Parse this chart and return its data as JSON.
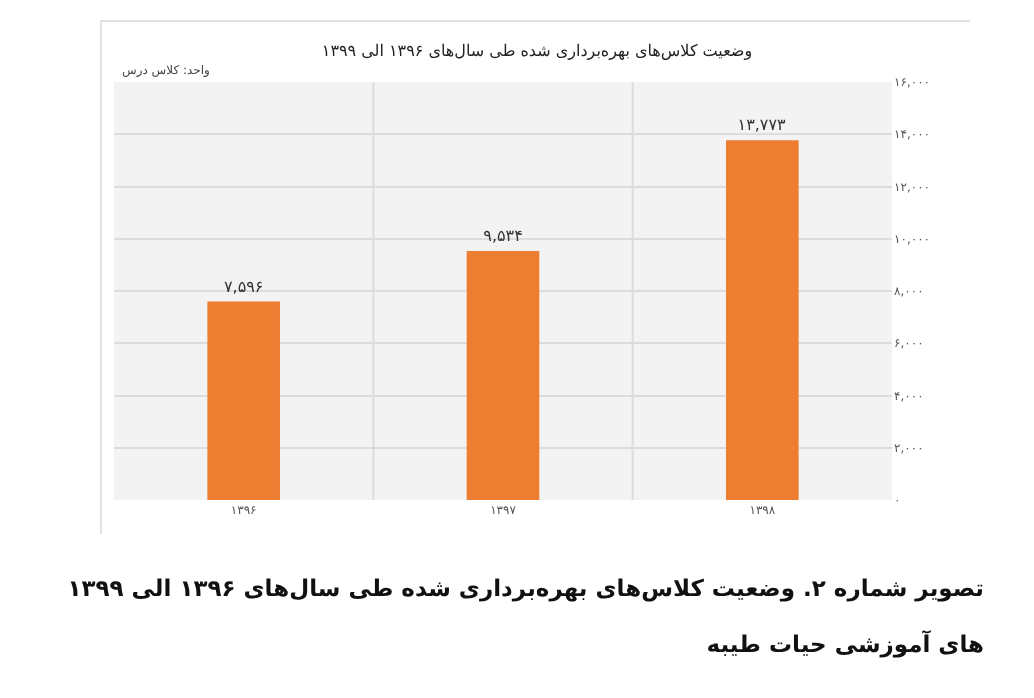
{
  "chart_data": {
    "type": "bar",
    "title": "وضعیت کلاس‌های بهره‌برداری شده طی سال‌های ۱۳۹۶ الی ۱۳۹۹",
    "ylabel": "واحد: کلاس درس",
    "categories": [
      "۱۳۹۶",
      "۱۳۹۷",
      "۱۳۹۸"
    ],
    "values": [
      7596,
      9534,
      13773
    ],
    "color": "#ed7d31",
    "value_labels": [
      "۷,۵۹۶",
      "۹,۵۳۴",
      "۱۳,۷۷۳"
    ],
    "ylim": [
      0,
      16000
    ],
    "yticks": [
      {
        "value": 0,
        "label": "۰"
      },
      {
        "value": 2000,
        "label": "۲,۰۰۰"
      },
      {
        "value": 4000,
        "label": "۴,۰۰۰"
      },
      {
        "value": 6000,
        "label": "۶,۰۰۰"
      },
      {
        "value": 8000,
        "label": "۸,۰۰۰"
      },
      {
        "value": 10000,
        "label": "۱۰,۰۰۰"
      },
      {
        "value": 12000,
        "label": "۱۲,۰۰۰"
      },
      {
        "value": 14000,
        "label": "۱۴,۰۰۰"
      },
      {
        "value": 16000,
        "label": "۱۶,۰۰۰"
      }
    ],
    "grid": true,
    "legend": false,
    "annotations": [
      "تصویر شماره ۲. وضعیت کلاس‌های بهره‌برداری شده طی سال‌های ۱۳۹۶ الی ۱۳۹۹",
      "های آموزشی حیات طیبه"
    ]
  }
}
